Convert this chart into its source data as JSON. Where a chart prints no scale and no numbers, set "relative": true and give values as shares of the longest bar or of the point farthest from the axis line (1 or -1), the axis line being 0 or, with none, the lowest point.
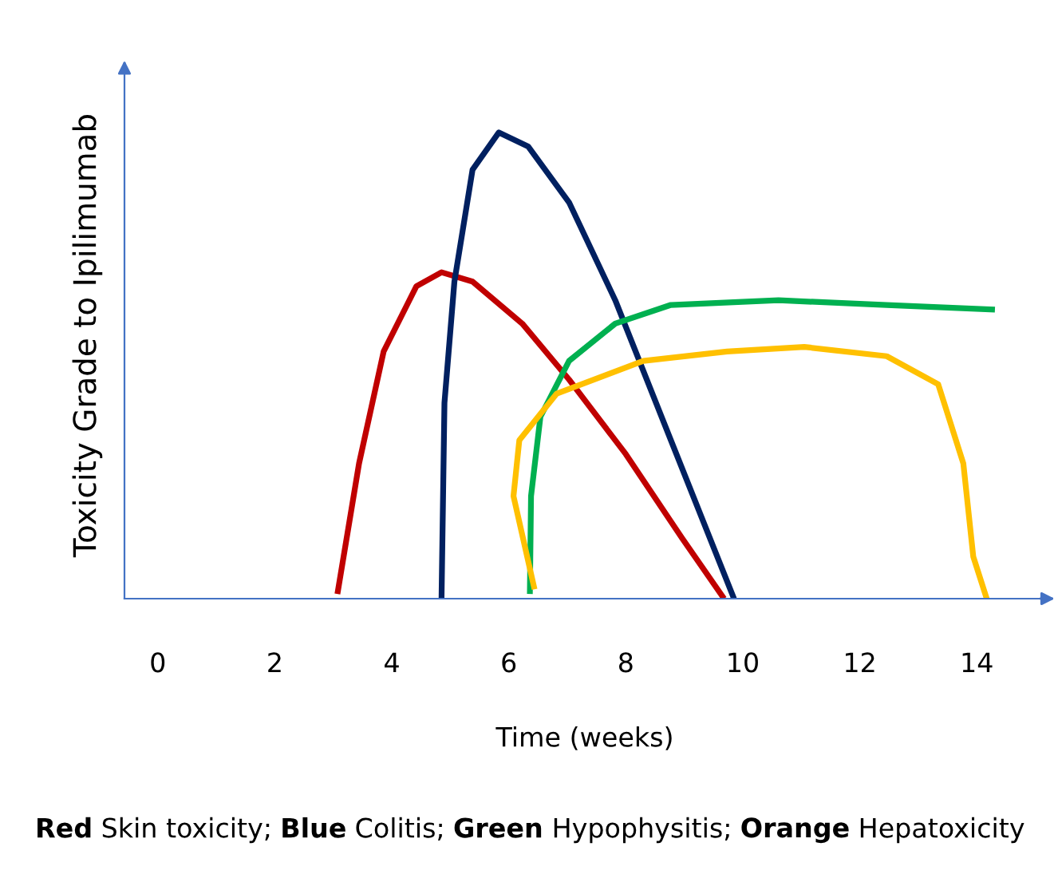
{
  "chart_data": {
    "type": "line",
    "relative": true,
    "xlabel": "Time (weeks)",
    "ylabel": "Toxicity Grade to Ipilimumab",
    "xlim": [
      -0.57,
      15.17
    ],
    "xticks": [
      0,
      2,
      4,
      6,
      8,
      10,
      12,
      14
    ],
    "grid": false,
    "legend": false,
    "marker": "none",
    "line_style": "solid",
    "series": [
      {
        "color": "#c00000",
        "x": [
          3.07,
          3.44,
          3.86,
          4.42,
          4.85,
          5.38,
          6.23,
          7.03,
          8.0,
          8.96,
          9.68
        ],
        "values": [
          0.01,
          0.29,
          0.53,
          0.67,
          0.7,
          0.68,
          0.59,
          0.47,
          0.31,
          0.13,
          0
        ]
      },
      {
        "color": "#002060",
        "x": [
          4.85,
          4.9,
          5.07,
          5.38,
          5.83,
          6.33,
          7.03,
          7.82,
          8.77,
          9.85
        ],
        "values": [
          0,
          0.42,
          0.68,
          0.92,
          1,
          0.97,
          0.85,
          0.64,
          0.34,
          0
        ]
      },
      {
        "color": "#00b050",
        "x": [
          6.36,
          6.38,
          6.54,
          7.03,
          7.82,
          8.77,
          10.61,
          12.46,
          14.31
        ],
        "values": [
          0.01,
          0.22,
          0.39,
          0.51,
          0.59,
          0.63,
          0.64,
          0.63,
          0.62
        ]
      },
      {
        "color": "#ffc000",
        "x": [
          6.44,
          6.08,
          6.18,
          6.82,
          8.3,
          9.73,
          11.05,
          12.46,
          13.34,
          13.77,
          13.94,
          14.17
        ],
        "values": [
          0.02,
          0.22,
          0.34,
          0.44,
          0.51,
          0.53,
          0.54,
          0.52,
          0.46,
          0.29,
          0.09,
          0
        ]
      }
    ],
    "annotations": [
      "Red Skin toxicity; Blue Colitis; Green Hypophysitis; Orange Hepatoxicity"
    ]
  }
}
